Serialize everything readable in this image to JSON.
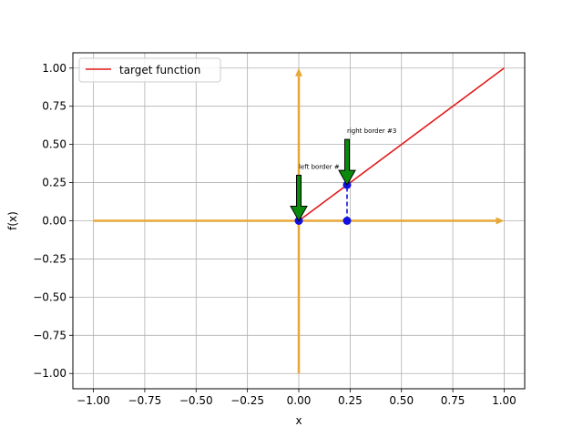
{
  "chart_data": {
    "type": "line",
    "xlabel": "x",
    "ylabel": "f(x)",
    "xlim": [
      -1.1,
      1.1
    ],
    "ylim": [
      -1.1,
      1.1
    ],
    "xticks": [
      -1.0,
      -0.75,
      -0.5,
      -0.25,
      0.0,
      0.25,
      0.5,
      0.75,
      1.0
    ],
    "xtick_labels": [
      "−1.00",
      "−0.75",
      "−0.50",
      "−0.25",
      "0.00",
      "0.25",
      "0.50",
      "0.75",
      "1.00"
    ],
    "yticks": [
      -1.0,
      -0.75,
      -0.5,
      -0.25,
      0.0,
      0.25,
      0.5,
      0.75,
      1.0
    ],
    "ytick_labels": [
      "−1.00",
      "−0.75",
      "−0.50",
      "−0.25",
      "0.00",
      "0.25",
      "0.50",
      "0.75",
      "1.00"
    ],
    "grid": true,
    "legend_position": "top-left",
    "series": [
      {
        "name": "target function",
        "color": "#e41a1c",
        "x": [
          0.0,
          1.0
        ],
        "y": [
          0.0,
          1.0
        ]
      }
    ],
    "axis_arrows": {
      "color": "#e8a838",
      "horizontal": {
        "from": [
          -1.0,
          0.0
        ],
        "to": [
          1.0,
          0.0
        ]
      },
      "vertical": {
        "from": [
          0.0,
          -1.0
        ],
        "to": [
          0.0,
          1.0
        ]
      }
    },
    "points": {
      "color": "#1010e0",
      "items": [
        {
          "x": 0.0,
          "y": 0.0
        },
        {
          "x": 0.235,
          "y": 0.235
        },
        {
          "x": 0.235,
          "y": 0.0
        }
      ]
    },
    "dashed_segment": {
      "color": "#1010e0",
      "x": 0.235,
      "y_from": 0.0,
      "y_to": 0.235
    },
    "annotations": [
      {
        "text": "left border #",
        "tip_x": 0.0,
        "tip_y": 0.0,
        "arrow_color": "#0a8a0a"
      },
      {
        "text": "right border #3",
        "tip_x": 0.235,
        "tip_y": 0.235,
        "arrow_color": "#0a8a0a"
      }
    ]
  }
}
